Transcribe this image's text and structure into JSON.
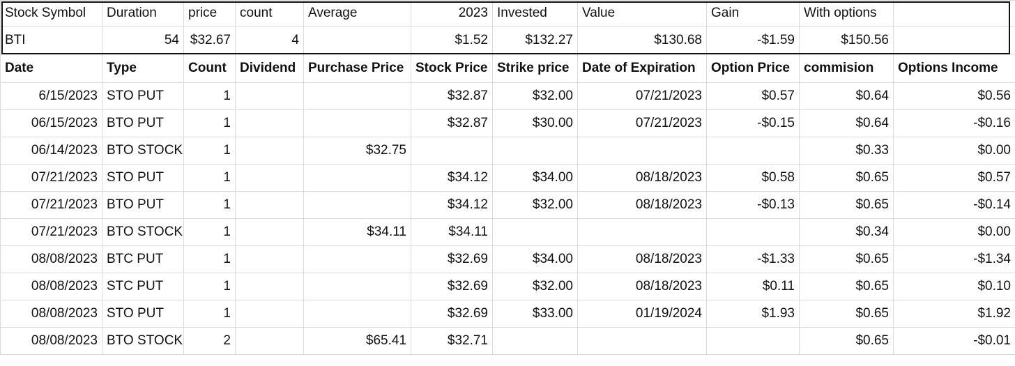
{
  "summary": {
    "headers": [
      "Stock Symbol",
      "Duration",
      "price",
      "count",
      "Average",
      "2023",
      "Invested",
      "Value",
      "Gain",
      "With options",
      ""
    ],
    "values": [
      "BTI",
      "54",
      "$32.67",
      "4",
      "",
      "$1.52",
      "$132.27",
      "$130.68",
      "-$1.59",
      "$150.56",
      ""
    ]
  },
  "table": {
    "headers": [
      "Date",
      "Type",
      "Count",
      "Dividend",
      "Purchase Price",
      "Stock Price",
      "Strike price",
      "Date of Expiration",
      "Option Price",
      "commision",
      "Options Income"
    ],
    "rows": [
      [
        "6/15/2023",
        "STO PUT",
        "1",
        "",
        "",
        "$32.87",
        "$32.00",
        "07/21/2023",
        "$0.57",
        "$0.64",
        "$0.56"
      ],
      [
        "06/15/2023",
        "BTO PUT",
        "1",
        "",
        "",
        "$32.87",
        "$30.00",
        "07/21/2023",
        "-$0.15",
        "$0.64",
        "-$0.16"
      ],
      [
        "06/14/2023",
        "BTO STOCK",
        "1",
        "",
        "$32.75",
        "",
        "",
        "",
        "",
        "$0.33",
        "$0.00"
      ],
      [
        "07/21/2023",
        "STO PUT",
        "1",
        "",
        "",
        "$34.12",
        "$34.00",
        "08/18/2023",
        "$0.58",
        "$0.65",
        "$0.57"
      ],
      [
        "07/21/2023",
        "BTO PUT",
        "1",
        "",
        "",
        "$34.12",
        "$32.00",
        "08/18/2023",
        "-$0.13",
        "$0.65",
        "-$0.14"
      ],
      [
        "07/21/2023",
        "BTO STOCK",
        "1",
        "",
        "$34.11",
        "$34.11",
        "",
        "",
        "",
        "$0.34",
        "$0.00"
      ],
      [
        "08/08/2023",
        "BTC PUT",
        "1",
        "",
        "",
        "$32.69",
        "$34.00",
        "08/18/2023",
        "-$1.33",
        "$0.65",
        "-$1.34"
      ],
      [
        "08/08/2023",
        "STC PUT",
        "1",
        "",
        "",
        "$32.69",
        "$32.00",
        "08/18/2023",
        "$0.11",
        "$0.65",
        "$0.10"
      ],
      [
        "08/08/2023",
        "STO PUT",
        "1",
        "",
        "",
        "$32.69",
        "$33.00",
        "01/19/2024",
        "$1.93",
        "$0.65",
        "$1.92"
      ],
      [
        "08/08/2023",
        "BTO STOCK",
        "2",
        "",
        "$65.41",
        "$32.71",
        "",
        "",
        "",
        "$0.65",
        "-$0.01"
      ]
    ]
  }
}
